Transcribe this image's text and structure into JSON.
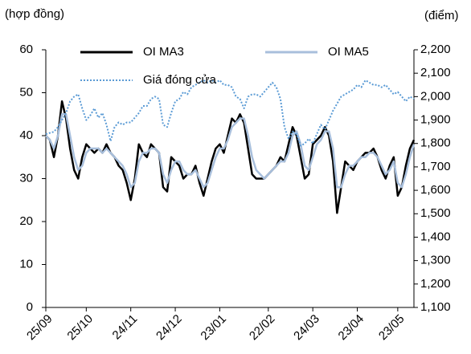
{
  "chart_data": {
    "type": "line",
    "y_label": "(hợp đồng)",
    "y2_label": "(điểm)",
    "categories": [
      "25/09",
      null,
      null,
      null,
      null,
      null,
      null,
      null,
      null,
      null,
      "25/10",
      null,
      null,
      null,
      null,
      null,
      null,
      null,
      null,
      null,
      null,
      "24/11",
      null,
      null,
      null,
      null,
      null,
      null,
      null,
      null,
      null,
      null,
      "24/12",
      null,
      null,
      null,
      null,
      null,
      null,
      null,
      null,
      null,
      null,
      "23/01",
      null,
      null,
      null,
      null,
      null,
      null,
      null,
      null,
      null,
      null,
      null,
      "22/02",
      null,
      null,
      null,
      null,
      null,
      null,
      null,
      null,
      null,
      null,
      "24/03",
      null,
      null,
      null,
      null,
      null,
      null,
      null,
      null,
      null,
      null,
      "23/04",
      null,
      null,
      null,
      null,
      null,
      null,
      null,
      null,
      null,
      "23/05",
      null,
      null,
      null,
      null
    ],
    "series": [
      {
        "name": "OI MA3",
        "color": "#000000",
        "style": "solid",
        "axis": "y",
        "values": [
          40,
          39,
          35,
          40,
          48,
          44,
          37,
          32,
          30,
          35,
          38,
          37,
          36,
          37,
          36,
          38,
          36,
          35,
          33,
          32,
          29,
          25,
          30,
          38,
          36,
          35,
          38,
          37,
          36,
          28,
          27,
          35,
          34,
          33,
          30,
          31,
          31,
          33,
          29,
          26,
          30,
          34,
          37,
          38,
          36,
          40,
          44,
          43,
          45,
          43,
          37,
          31,
          30,
          30,
          30,
          31,
          32,
          33,
          35,
          34,
          38,
          42,
          40,
          35,
          30,
          31,
          38,
          39,
          40,
          42,
          40,
          34,
          22,
          28,
          34,
          33,
          32,
          34,
          35,
          36,
          36,
          37,
          35,
          32,
          30,
          33,
          35,
          26,
          28,
          33,
          37,
          39
        ]
      },
      {
        "name": "OI MA5",
        "color": "#a8bfdc",
        "style": "solid",
        "axis": "y",
        "values": [
          40,
          39,
          37,
          40,
          45,
          45,
          40,
          35,
          32,
          33,
          36,
          37,
          37,
          37,
          36,
          37,
          36,
          35,
          34,
          33,
          31,
          28,
          29,
          34,
          36,
          36,
          37,
          37,
          36,
          31,
          29,
          32,
          34,
          34,
          32,
          31,
          31,
          32,
          30,
          28,
          29,
          32,
          35,
          37,
          37,
          39,
          42,
          43,
          44,
          44,
          40,
          35,
          32,
          31,
          30,
          31,
          32,
          33,
          34,
          34,
          36,
          40,
          41,
          38,
          33,
          32,
          35,
          38,
          39,
          41,
          41,
          37,
          28,
          28,
          31,
          33,
          33,
          34,
          35,
          35,
          36,
          36,
          35,
          33,
          31,
          32,
          34,
          29,
          28,
          31,
          35,
          38
        ]
      },
      {
        "name": "Giá đóng cửa",
        "color": "#5b9bd5",
        "style": "dotted",
        "axis": "y2",
        "values": [
          1840,
          1845,
          1850,
          1870,
          1900,
          1930,
          1980,
          2000,
          2010,
          1950,
          1900,
          1920,
          1950,
          1910,
          1930,
          1880,
          1810,
          1870,
          1890,
          1880,
          1890,
          1890,
          1910,
          1930,
          1960,
          1960,
          1990,
          2000,
          1990,
          1880,
          1870,
          1930,
          1980,
          1990,
          2020,
          2010,
          2040,
          2050,
          2060,
          2070,
          2060,
          2070,
          2060,
          2070,
          2050,
          2050,
          2040,
          2000,
          1990,
          1950,
          2000,
          2010,
          2010,
          2000,
          2020,
          2040,
          2060,
          2040,
          1990,
          1870,
          1820,
          1850,
          1840,
          1790,
          1800,
          1820,
          1800,
          1840,
          1880,
          1860,
          1900,
          1940,
          1970,
          2000,
          2010,
          2020,
          2030,
          2050,
          2040,
          2070,
          2060,
          2050,
          2050,
          2040,
          2050,
          2030,
          2010,
          2020,
          2000,
          1980,
          2000,
          1990
        ]
      }
    ],
    "ylim": [
      0,
      60
    ],
    "yticks": [
      0,
      10,
      20,
      30,
      40,
      50,
      60
    ],
    "y2lim": [
      1100,
      2200
    ],
    "y2ticks": [
      {
        "value": 1100,
        "label": "1,100"
      },
      {
        "value": 1200,
        "label": "1,200"
      },
      {
        "value": 1300,
        "label": "1,300"
      },
      {
        "value": 1400,
        "label": "1,400"
      },
      {
        "value": 1500,
        "label": "1,500"
      },
      {
        "value": 1600,
        "label": "1,600"
      },
      {
        "value": 1700,
        "label": "1,700"
      },
      {
        "value": 1800,
        "label": "1,800"
      },
      {
        "value": 1900,
        "label": "1,900"
      },
      {
        "value": 2000,
        "label": "2,000"
      },
      {
        "value": 2100,
        "label": "2,100"
      },
      {
        "value": 2200,
        "label": "2,200"
      }
    ],
    "grid": false
  }
}
